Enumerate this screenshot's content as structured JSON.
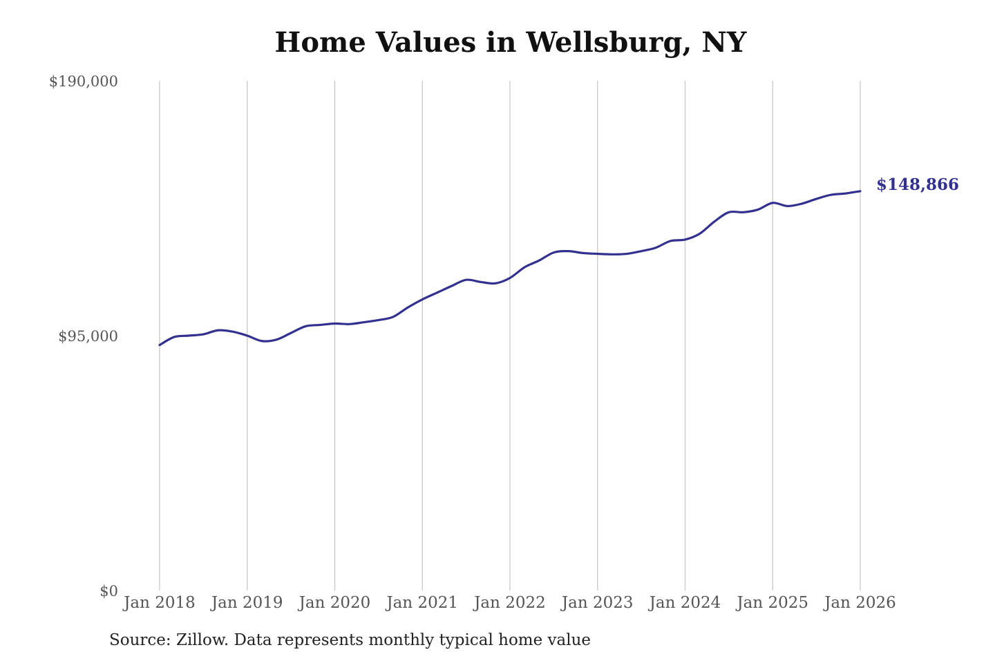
{
  "chart_data": {
    "type": "line",
    "title": "Home Values in Wellsburg, NY",
    "source": "Source: Zillow. Data represents monthly typical home value",
    "xlabel": "",
    "ylabel": "",
    "ylim": [
      0,
      190000
    ],
    "yticks": [
      {
        "value": 0,
        "label": "$0"
      },
      {
        "value": 95000,
        "label": "$95,000"
      },
      {
        "value": 190000,
        "label": "$190,000"
      }
    ],
    "xticks": [
      {
        "value": "2018-01",
        "label": "Jan 2018"
      },
      {
        "value": "2019-01",
        "label": "Jan 2019"
      },
      {
        "value": "2020-01",
        "label": "Jan 2020"
      },
      {
        "value": "2021-01",
        "label": "Jan 2021"
      },
      {
        "value": "2022-01",
        "label": "Jan 2022"
      },
      {
        "value": "2023-01",
        "label": "Jan 2023"
      },
      {
        "value": "2024-01",
        "label": "Jan 2024"
      },
      {
        "value": "2025-01",
        "label": "Jan 2025"
      },
      {
        "value": "2026-01",
        "label": "Jan 2026"
      }
    ],
    "grid": "vertical",
    "line_color": "#33318f",
    "end_label": "$148,866",
    "series": [
      {
        "x": [
          "2018-01",
          "2018-03",
          "2018-05",
          "2018-07",
          "2018-09",
          "2018-11",
          "2019-01",
          "2019-03",
          "2019-05",
          "2019-07",
          "2019-09",
          "2019-11",
          "2020-01",
          "2020-03",
          "2020-05",
          "2020-07",
          "2020-09",
          "2020-11",
          "2021-01",
          "2021-03",
          "2021-05",
          "2021-07",
          "2021-09",
          "2021-11",
          "2022-01",
          "2022-03",
          "2022-05",
          "2022-07",
          "2022-09",
          "2022-11",
          "2023-01",
          "2023-03",
          "2023-05",
          "2023-07",
          "2023-09",
          "2023-11",
          "2024-01",
          "2024-03",
          "2024-05",
          "2024-07",
          "2024-09",
          "2024-11",
          "2025-01",
          "2025-03",
          "2025-05",
          "2025-07",
          "2025-09",
          "2025-11",
          "2026-01"
        ],
        "values": [
          91500,
          94500,
          95000,
          95500,
          97000,
          96500,
          95000,
          93000,
          93500,
          96000,
          98500,
          99000,
          99500,
          99300,
          100000,
          100800,
          102000,
          105500,
          108500,
          111000,
          113500,
          115800,
          115000,
          114500,
          116500,
          120500,
          123000,
          126000,
          126500,
          125800,
          125500,
          125300,
          125500,
          126500,
          127800,
          130300,
          130800,
          133000,
          137500,
          141000,
          141000,
          142000,
          144500,
          143300,
          144200,
          146000,
          147500,
          148000,
          148866
        ]
      }
    ]
  }
}
